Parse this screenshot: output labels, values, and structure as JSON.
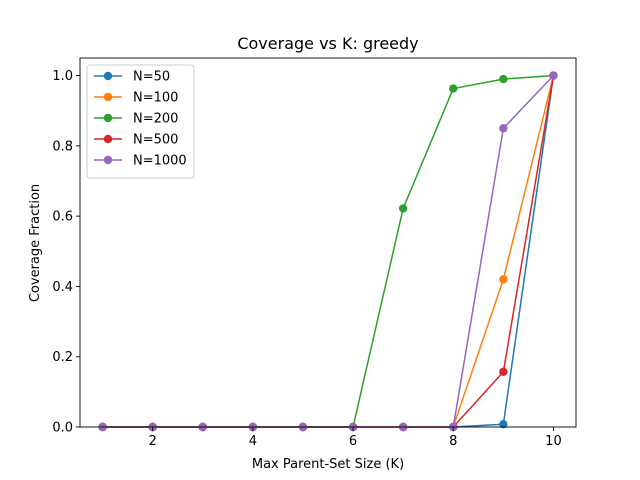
{
  "chart_data": {
    "type": "line",
    "title": "Coverage vs K: greedy",
    "xlabel": "Max Parent-Set Size (K)",
    "ylabel": "Coverage Fraction",
    "xlim": [
      0.55,
      10.45
    ],
    "ylim": [
      0.0,
      1.05
    ],
    "xticks": [
      2,
      4,
      6,
      8,
      10
    ],
    "yticks": [
      0.0,
      0.2,
      0.4,
      0.6,
      0.8,
      1.0
    ],
    "xtick_labels": [
      "2",
      "4",
      "6",
      "8",
      "10"
    ],
    "ytick_labels": [
      "0.0",
      "0.2",
      "0.4",
      "0.6",
      "0.8",
      "1.0"
    ],
    "x": [
      1,
      2,
      3,
      4,
      5,
      6,
      7,
      8,
      9,
      10
    ],
    "grid": false,
    "legend_position": "top-left",
    "series": [
      {
        "name": "N=50",
        "color": "#1f77b4",
        "values": [
          0,
          0,
          0,
          0,
          0,
          0,
          0,
          0,
          0.008,
          1.0
        ]
      },
      {
        "name": "N=100",
        "color": "#ff7f0e",
        "values": [
          0,
          0,
          0,
          0,
          0,
          0,
          0,
          0,
          0.42,
          1.0
        ]
      },
      {
        "name": "N=200",
        "color": "#2ca02c",
        "values": [
          0,
          0,
          0,
          0,
          0,
          0,
          0.622,
          0.963,
          0.99,
          1.0
        ]
      },
      {
        "name": "N=500",
        "color": "#d62728",
        "values": [
          0,
          0,
          0,
          0,
          0,
          0,
          0,
          0,
          0.157,
          1.0
        ]
      },
      {
        "name": "N=1000",
        "color": "#9467bd",
        "values": [
          0,
          0,
          0,
          0,
          0,
          0,
          0,
          0,
          0.85,
          1.0
        ]
      }
    ]
  }
}
